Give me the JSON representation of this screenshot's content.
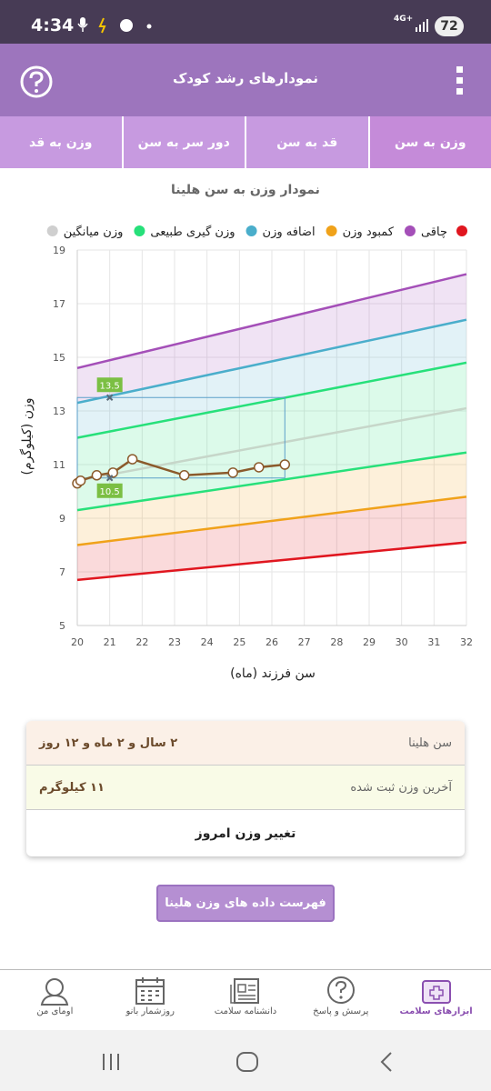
{
  "status_bar": {
    "time": "4:34",
    "network": "4G+",
    "battery": "72"
  },
  "app_bar": {
    "title": "نمودارهای رشد کودک"
  },
  "tabs": [
    "وزن به سن",
    "قد به سن",
    "دور سر به سن",
    "وزن به قد"
  ],
  "chart_data": {
    "type": "line",
    "title": "نمودار وزن به سن هلینا",
    "y_label": "وزن (کیلوگرم)",
    "x_label": "سن فرزند (ماه)",
    "legend": [
      {
        "name": null,
        "color": "#e0161f"
      },
      {
        "name": "چاقی",
        "color": "#a44fb8"
      },
      {
        "name": "کمبود وزن",
        "color": "#f0a21a"
      },
      {
        "name": "اضافه وزن",
        "color": "#4aaecb"
      },
      {
        "name": "وزن گیری طبیعی",
        "color": "#27e07a"
      },
      {
        "name": "وزن میانگین",
        "color": "#cfcfcf"
      }
    ],
    "x": [
      20,
      32
    ],
    "series": [
      {
        "color": "#e0161f",
        "values": [
          6.7,
          8.1
        ]
      },
      {
        "color": "#f0a21a",
        "values": [
          8.0,
          9.8
        ]
      },
      {
        "color": "#27e07a",
        "values": [
          9.3,
          11.45
        ]
      },
      {
        "color": "#c6d6c9",
        "values": [
          10.4,
          13.1
        ]
      },
      {
        "color": "#27e07a",
        "values": [
          12.0,
          14.8
        ]
      },
      {
        "color": "#4aaecb",
        "values": [
          13.3,
          16.4
        ]
      },
      {
        "color": "#a44fb8",
        "values": [
          14.6,
          18.1
        ]
      }
    ],
    "child": {
      "color": "#8b5a2b",
      "x": [
        20,
        20.1,
        20.6,
        21.1,
        21.7,
        23.3,
        24.8,
        25.6,
        26.4
      ],
      "values": [
        10.3,
        10.4,
        10.6,
        10.7,
        11.2,
        10.6,
        10.7,
        10.9,
        11.0
      ]
    },
    "markers": [
      {
        "x": 21,
        "y": 13.5
      },
      {
        "x": 21,
        "y": 10.5
      }
    ],
    "xlim": [
      20,
      32
    ],
    "xticks": [
      20,
      21,
      22,
      23,
      24,
      25,
      26,
      27,
      28,
      29,
      30,
      31,
      32
    ],
    "ylim": [
      5,
      19
    ],
    "yticks": [
      5,
      7,
      9,
      11,
      13,
      15,
      17,
      19
    ],
    "grid": true
  },
  "info_card": {
    "rows": [
      [
        "سن هلینا",
        "۲ سال و ۲ ماه و ۱۲ روز"
      ],
      [
        "آخرین وزن ثبت شده",
        "۱۱ کیلوگرم"
      ]
    ],
    "action": "تغییر وزن امروز"
  },
  "list_button": "فهرست داده های وزن هلینا",
  "bottom_nav": [
    "ابزارهای سلامت",
    "پرسش و پاسخ",
    "دانشنامه سلامت",
    "روزشمار بانو",
    "اومای من"
  ]
}
